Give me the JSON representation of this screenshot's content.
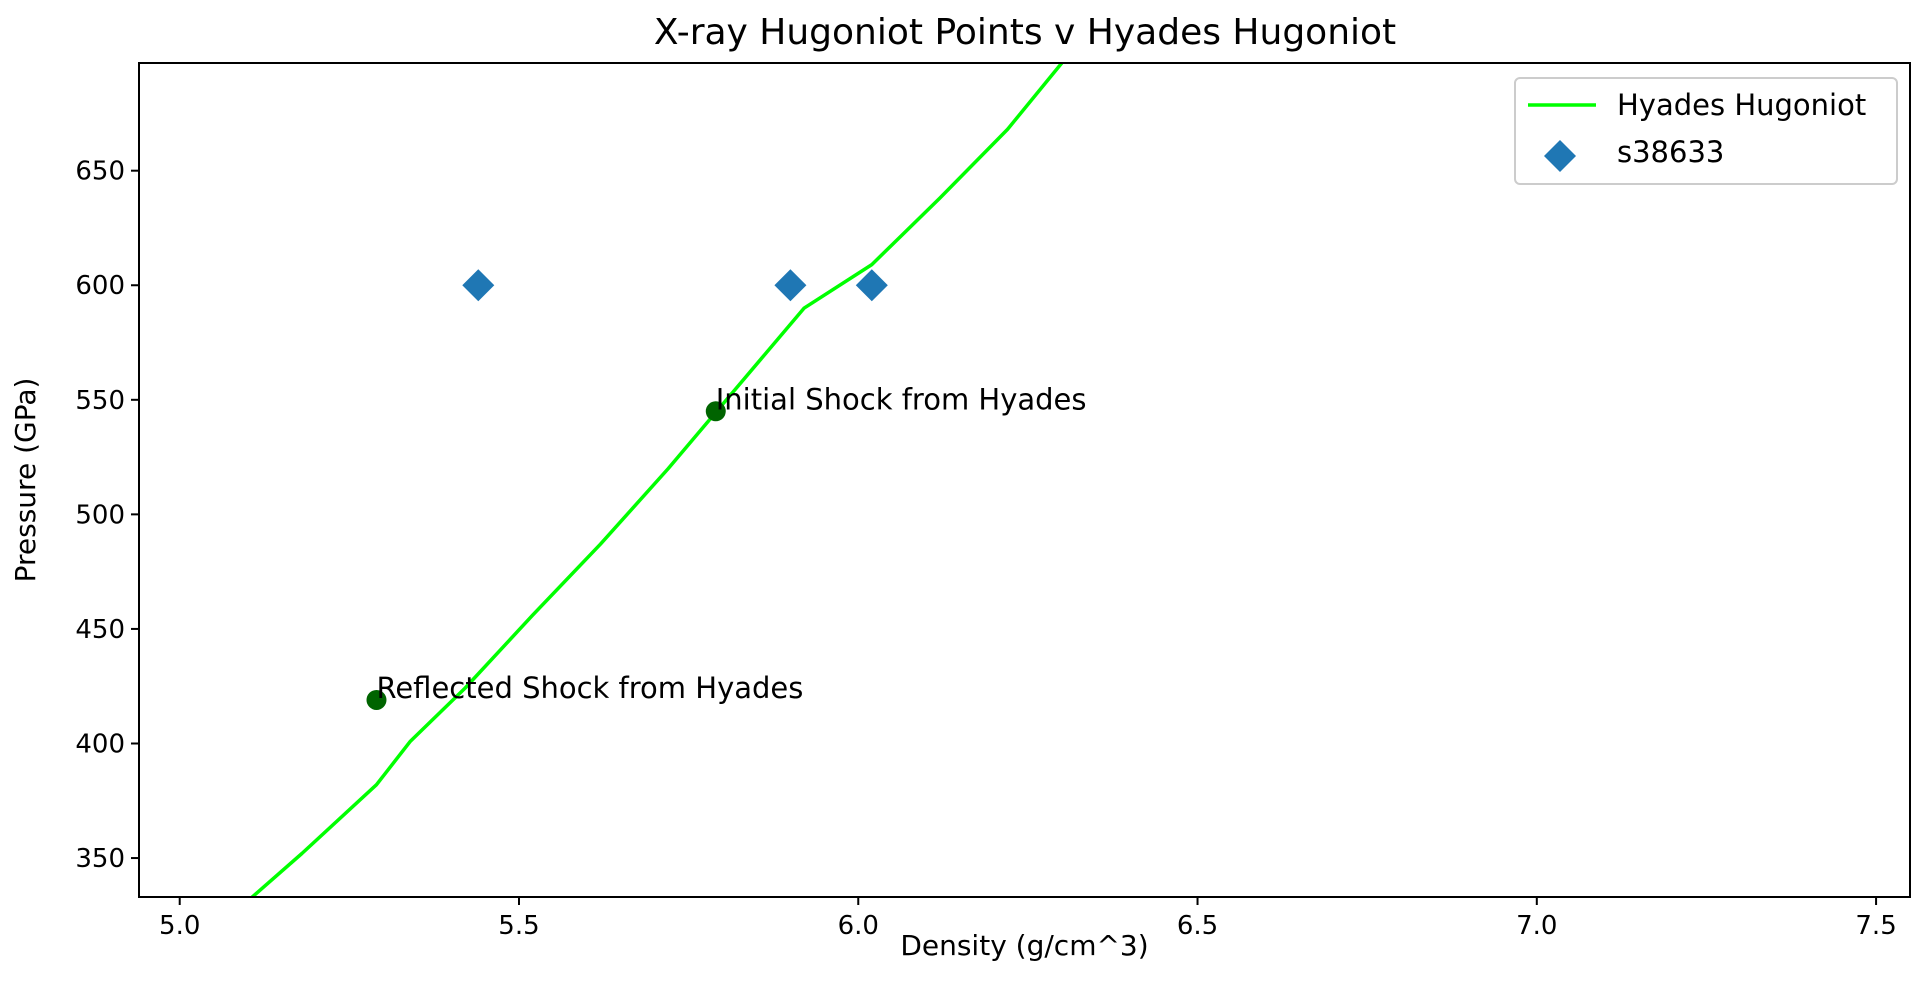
{
  "chart_data": {
    "type": "scatter",
    "title": "X-ray Hugoniot Points v Hyades Hugoniot",
    "xlabel": "Density (g/cm^3)",
    "ylabel": "Pressure (GPa)",
    "xlim": [
      4.94,
      7.55
    ],
    "ylim": [
      333,
      697
    ],
    "xticks": [
      5.0,
      5.5,
      6.0,
      6.5,
      7.0,
      7.5
    ],
    "xtick_labels": [
      "5.0",
      "5.5",
      "6.0",
      "6.5",
      "7.0",
      "7.5"
    ],
    "yticks": [
      350,
      400,
      450,
      500,
      550,
      600,
      650
    ],
    "ytick_labels": [
      "350",
      "400",
      "450",
      "500",
      "550",
      "600",
      "650"
    ],
    "grid": false,
    "legend_position": "top-right",
    "series": [
      {
        "name": "Hyades Hugoniot",
        "kind": "line",
        "color": "#00ff00",
        "x": [
          5.08,
          5.18,
          5.29,
          5.34,
          5.42,
          5.52,
          5.62,
          5.72,
          5.82,
          5.92,
          6.02,
          6.12,
          6.22,
          6.3
        ],
        "y": [
          326,
          352,
          382,
          401,
          424,
          456,
          487,
          520,
          555,
          590,
          609,
          638,
          668,
          697
        ]
      },
      {
        "name": "s38633",
        "kind": "scatter",
        "marker": "diamond",
        "color": "#1f77b4",
        "x": [
          5.44,
          5.9,
          6.02
        ],
        "y": [
          600,
          600,
          600
        ]
      },
      {
        "kind": "scatter",
        "marker": "circle",
        "color": "#006400",
        "x": [
          5.79,
          5.29
        ],
        "y": [
          545,
          419
        ],
        "labels": [
          "Initial Shock from Hyades",
          "Reflected Shock from Hyades"
        ]
      }
    ]
  }
}
